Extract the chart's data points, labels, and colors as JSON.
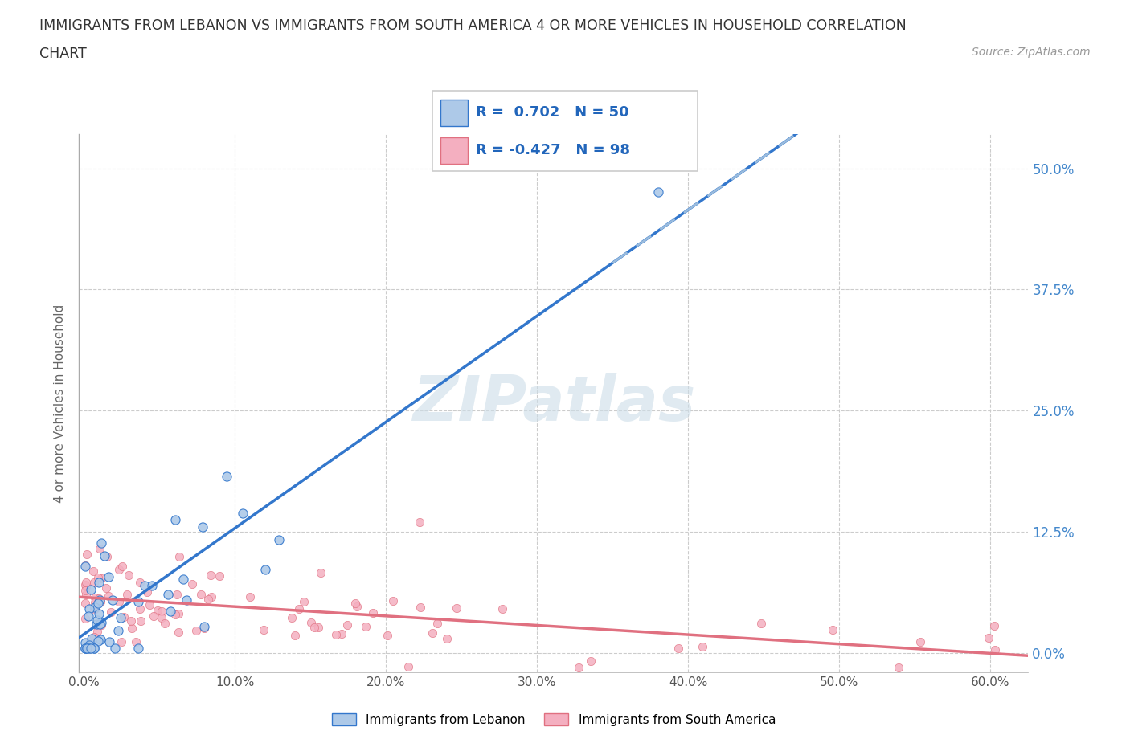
{
  "title_line1": "IMMIGRANTS FROM LEBANON VS IMMIGRANTS FROM SOUTH AMERICA 4 OR MORE VEHICLES IN HOUSEHOLD CORRELATION",
  "title_line2": "CHART",
  "source_text": "Source: ZipAtlas.com",
  "ylabel": "4 or more Vehicles in Household",
  "legend_label1": "Immigrants from Lebanon",
  "legend_label2": "Immigrants from South America",
  "R1": 0.702,
  "N1": 50,
  "R2": -0.427,
  "N2": 98,
  "color_lebanon": "#adc9e8",
  "color_south_america": "#f4afc0",
  "color_line1": "#3377cc",
  "color_line2": "#e07080",
  "color_line1_dashed": "#99bbdd",
  "watermark_color": "#ccdde8",
  "xlim_min": -0.003,
  "xlim_max": 0.625,
  "ylim_min": -0.02,
  "ylim_max": 0.535,
  "x_ticks": [
    0.0,
    0.1,
    0.2,
    0.3,
    0.4,
    0.5,
    0.6
  ],
  "y_ticks": [
    0.0,
    0.125,
    0.25,
    0.375,
    0.5
  ]
}
